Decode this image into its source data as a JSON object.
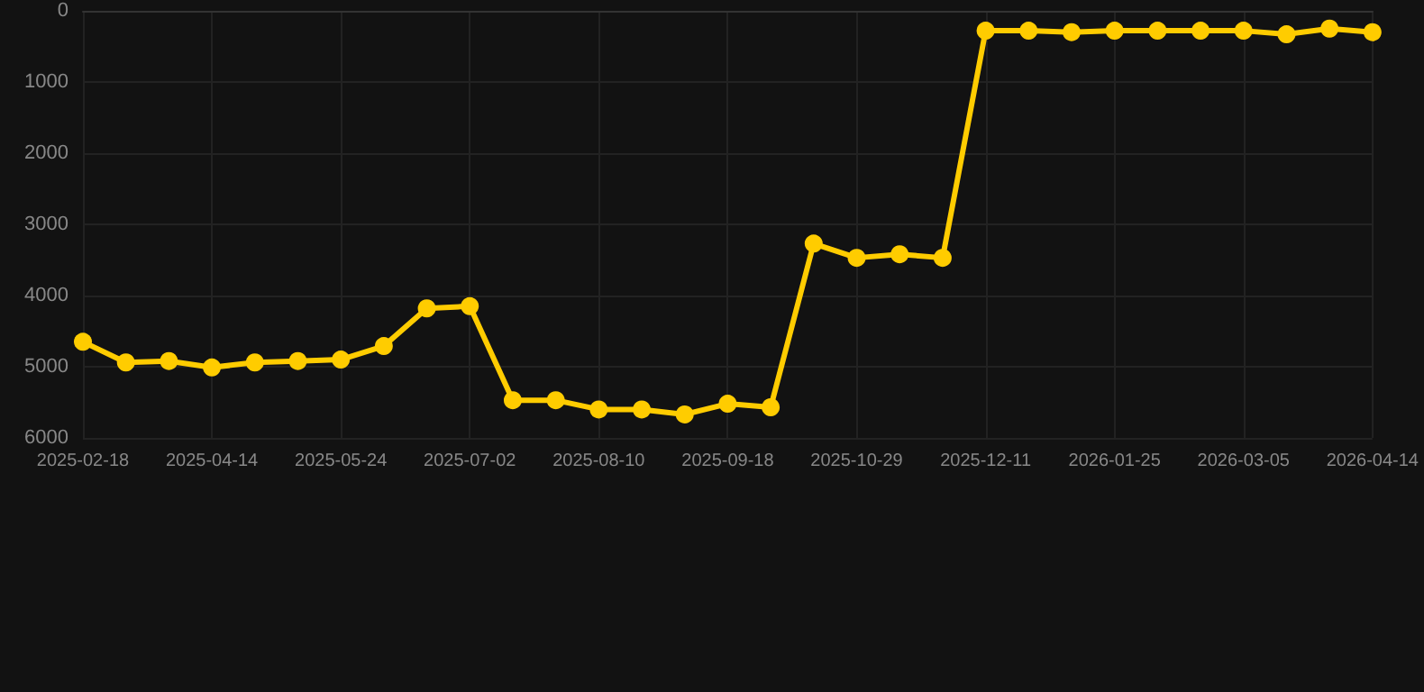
{
  "chart_data": {
    "type": "line",
    "categories": [
      "2025-02-18",
      null,
      null,
      "2025-04-14",
      null,
      null,
      "2025-05-24",
      null,
      null,
      "2025-07-02",
      null,
      null,
      "2025-08-10",
      null,
      null,
      "2025-09-18",
      null,
      null,
      "2025-10-29",
      null,
      null,
      "2025-12-11",
      null,
      null,
      "2026-01-25",
      null,
      null,
      "2026-03-05",
      null,
      null,
      "2026-04-14"
    ],
    "series": [
      {
        "color": "#ffcc00",
        "values": [
          4650,
          4940,
          4920,
          5010,
          4940,
          4920,
          4900,
          4710,
          4180,
          4150,
          5470,
          5470,
          5600,
          5600,
          5670,
          5520,
          5570,
          3270,
          3470,
          3420,
          3470,
          280,
          280,
          300,
          280,
          280,
          280,
          280,
          330,
          250,
          300
        ]
      }
    ],
    "ylim": [
      6000,
      0
    ],
    "yticks": [
      0,
      1000,
      2000,
      3000,
      4000,
      5000,
      6000
    ],
    "grid": true,
    "marker": "circle",
    "line_style": "solid"
  }
}
